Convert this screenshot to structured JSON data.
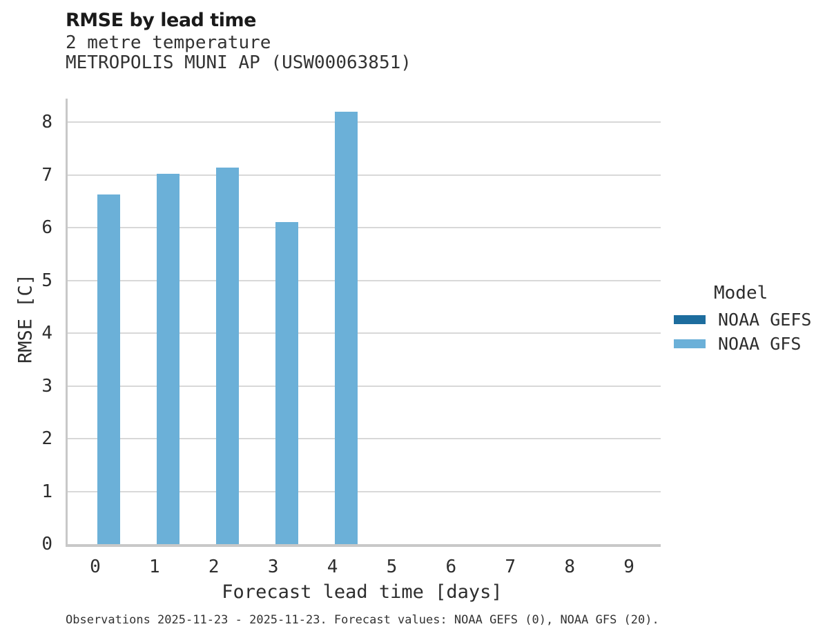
{
  "header": {
    "title": "RMSE by lead time",
    "subtitle_line1": "2 metre temperature",
    "subtitle_line2": "METROPOLIS MUNI AP (USW00063851)"
  },
  "chart_data": {
    "type": "bar",
    "title": "RMSE by lead time",
    "subtitle": [
      "2 metre temperature",
      "METROPOLIS MUNI AP (USW00063851)"
    ],
    "xlabel": "Forecast lead time [days]",
    "ylabel": "RMSE [C]",
    "categories": [
      "0",
      "1",
      "2",
      "3",
      "4",
      "5",
      "6",
      "7",
      "8",
      "9"
    ],
    "series": [
      {
        "name": "NOAA GEFS",
        "color": "#1d6d9e",
        "values": [
          null,
          null,
          null,
          null,
          null,
          null,
          null,
          null,
          null,
          null
        ]
      },
      {
        "name": "NOAA GFS",
        "color": "#6bb0d8",
        "values": [
          6.63,
          7.03,
          7.14,
          6.11,
          8.2,
          null,
          null,
          null,
          null,
          null
        ]
      }
    ],
    "ylim": [
      0,
      8.45
    ],
    "yticks": [
      0,
      1,
      2,
      3,
      4,
      5,
      6,
      7,
      8
    ],
    "grid": true,
    "legend_title": "Model",
    "legend_position": "right"
  },
  "legend": {
    "title": "Model",
    "entries": [
      {
        "label": "NOAA GEFS",
        "color": "#1d6d9e"
      },
      {
        "label": "NOAA GFS",
        "color": "#6bb0d8"
      }
    ]
  },
  "axes": {
    "xlabel": "Forecast lead time [days]",
    "ylabel": "RMSE [C]"
  },
  "footer": {
    "caption": "Observations 2025-11-23 - 2025-11-23. Forecast values: NOAA GEFS (0), NOAA GFS (20)."
  },
  "colors": {
    "bar_gfs": "#6bb0d8",
    "bar_gefs": "#1d6d9e",
    "gridline": "#d8d8d8",
    "axis_spine": "#c8c8c8",
    "title_text": "#1a1a1a",
    "body_text": "#2d2d2d"
  }
}
